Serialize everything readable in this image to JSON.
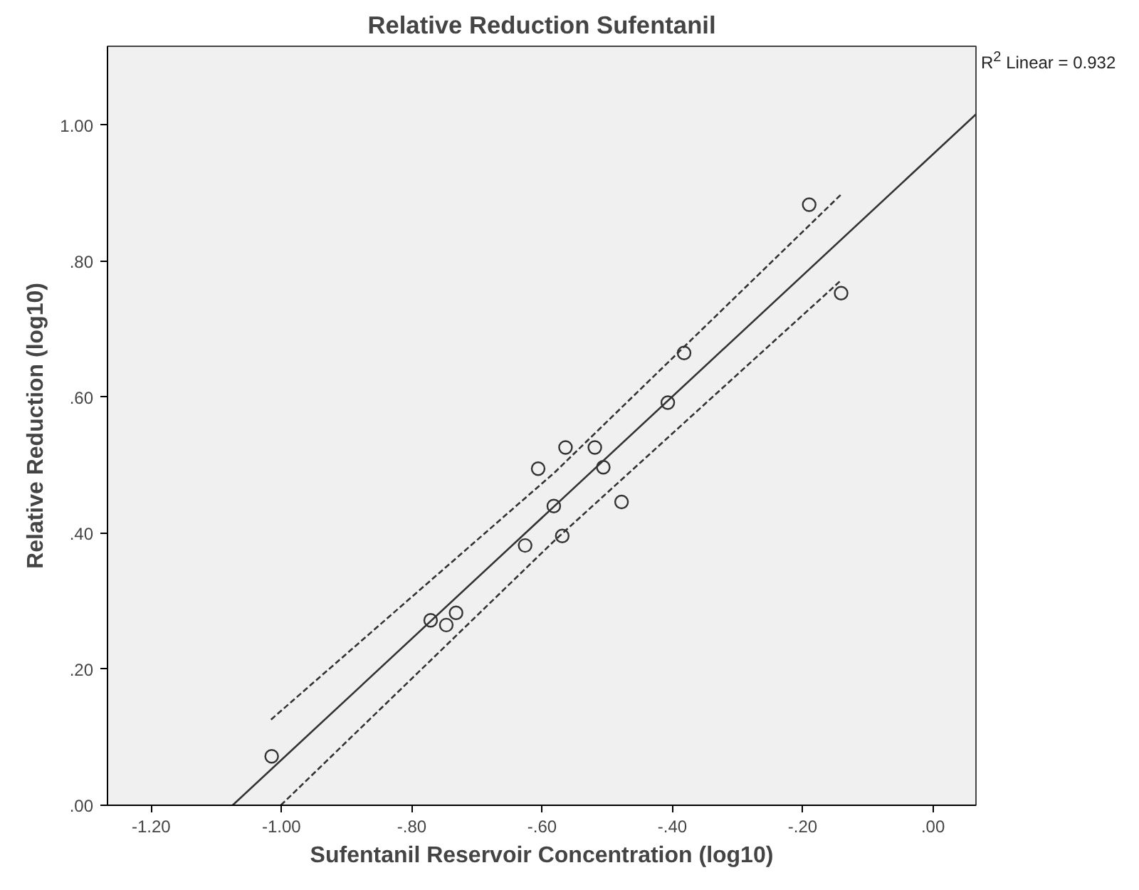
{
  "chart_data": {
    "type": "scatter",
    "title": "Relative Reduction Sufentanil",
    "xlabel": "Sufentanil Reservoir Concentration (log10)",
    "ylabel": "Relative Reduction (log10)",
    "annotations": [
      "R$^{2}$ Linear = 0.932"
    ],
    "xlim": [
      -1.267,
      0.066
    ],
    "ylim": [
      0,
      1.116
    ],
    "xticks": [
      {
        "value": -1.2,
        "label": "-1.20"
      },
      {
        "value": -1.0,
        "label": "-1.00"
      },
      {
        "value": -0.8,
        "label": "-.80"
      },
      {
        "value": -0.6,
        "label": "-.60"
      },
      {
        "value": -0.4,
        "label": "-.40"
      },
      {
        "value": -0.2,
        "label": "-.20"
      },
      {
        "value": 0,
        "label": ".00"
      }
    ],
    "yticks": [
      {
        "value": 0,
        "label": ".00"
      },
      {
        "value": 0.2,
        "label": ".20"
      },
      {
        "value": 0.4,
        "label": ".40"
      },
      {
        "value": 0.6,
        "label": ".60"
      },
      {
        "value": 0.8,
        "label": ".80"
      },
      {
        "value": 1.0,
        "label": "1.00"
      }
    ],
    "grid": false,
    "series": [
      {
        "marker": "circle",
        "color": "#333333",
        "x": [
          -1.015,
          -0.771,
          -0.747,
          -0.732,
          -0.626,
          -0.606,
          -0.582,
          -0.564,
          -0.569,
          -0.519,
          -0.506,
          -0.478,
          -0.407,
          -0.382,
          -0.19,
          -0.141
        ],
        "values": [
          0.072,
          0.272,
          0.265,
          0.283,
          0.382,
          0.495,
          0.44,
          0.526,
          0.396,
          0.526,
          0.497,
          0.446,
          0.592,
          0.665,
          0.883,
          0.753
        ]
      },
      {
        "type": "line",
        "line_style": "solid",
        "color": "#333333",
        "x": [
          -1.075,
          0.066
        ],
        "values": [
          0,
          1.016
        ]
      },
      {
        "type": "line",
        "line_style": "dashed",
        "color": "#333333",
        "x": [
          -1.016,
          -0.58,
          -0.139
        ],
        "values": [
          0.126,
          0.49,
          0.9
        ]
      },
      {
        "type": "line",
        "line_style": "dashed",
        "color": "#333333",
        "x": [
          -1.001,
          -0.58,
          -0.141
        ],
        "values": [
          0,
          0.39,
          0.772
        ]
      }
    ]
  }
}
